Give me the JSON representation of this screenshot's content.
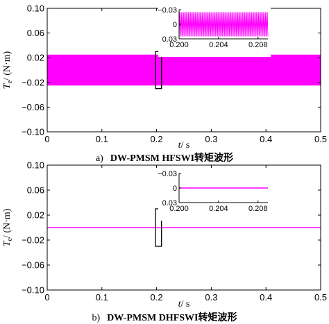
{
  "chart_data": [
    {
      "type": "line",
      "panel": "a",
      "caption": {
        "letter": "a)",
        "text": "DW-PMSM HFSWI转矩波形"
      },
      "ylabel": {
        "symbol": "T",
        "sub": "e",
        "unit": "/ (N·m)"
      },
      "xlabel": {
        "symbol": "t",
        "unit": "/ s"
      },
      "xlim": [
        0,
        0.5
      ],
      "ylim": [
        -0.1,
        0.1
      ],
      "xticks": [
        "0",
        "0.1",
        "0.2",
        "0.3",
        "0.4",
        "0.5"
      ],
      "yticks": [
        "0.10",
        "0.06",
        "0.02",
        "−0.02",
        "−0.06",
        "−0.10"
      ],
      "series": [
        {
          "color": "#ff00ff",
          "style": "dense oscillation",
          "min": -0.025,
          "max": 0.025
        }
      ],
      "zoom_box": {
        "x": [
          0.198,
          0.209
        ],
        "y": [
          -0.03,
          0.03
        ]
      },
      "inset": {
        "xlim": [
          0.2,
          0.209
        ],
        "ylim": [
          -0.03,
          0.03
        ],
        "xticks": [
          "0.200",
          "0.204",
          "0.208"
        ],
        "yticks": [
          "−0.03",
          "0",
          "0.03"
        ],
        "series": [
          {
            "color": "#ff00ff",
            "style": "oscillation",
            "amplitude": 0.025
          }
        ]
      }
    },
    {
      "type": "line",
      "panel": "b",
      "caption": {
        "letter": "b)",
        "text": "DW-PMSM DHFSWI转矩波形"
      },
      "ylabel": {
        "symbol": "T",
        "sub": "e",
        "unit": "/ (N·m)"
      },
      "xlabel": {
        "symbol": "t",
        "unit": "/ s"
      },
      "xlim": [
        0,
        0.5
      ],
      "ylim": [
        -0.1,
        0.1
      ],
      "xticks": [
        "0",
        "0.1",
        "0.2",
        "0.3",
        "0.4",
        "0.5"
      ],
      "yticks": [
        "0.10",
        "0.06",
        "0.02",
        "−0.02",
        "−0.06",
        "−0.10"
      ],
      "series": [
        {
          "color": "#ff00ff",
          "style": "flat",
          "value": 0
        }
      ],
      "zoom_box": {
        "x": [
          0.198,
          0.209
        ],
        "y": [
          -0.03,
          0.03
        ]
      },
      "inset": {
        "xlim": [
          0.2,
          0.209
        ],
        "ylim": [
          -0.03,
          0.03
        ],
        "xticks": [
          "0.200",
          "0.204",
          "0.208"
        ],
        "yticks": [
          "−0.03",
          "0",
          "0.03"
        ],
        "series": [
          {
            "color": "#ff00ff",
            "style": "flat",
            "value": 0
          }
        ]
      }
    }
  ]
}
